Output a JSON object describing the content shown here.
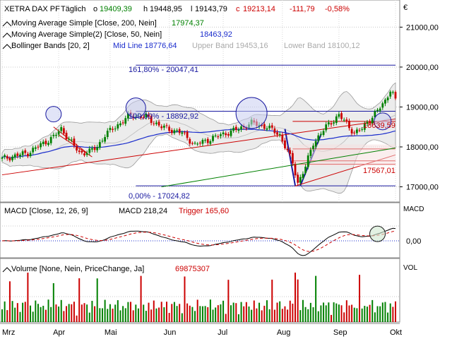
{
  "header": {
    "symbol": "XETRA DAX PF",
    "interval": "Täglich",
    "open_prefix": "o",
    "open": "19409,39",
    "high_prefix": "h",
    "high": "19448,95",
    "low_prefix": "l",
    "low": "19143,79",
    "close_prefix": "c",
    "close": "19213,14",
    "change": "-111,79",
    "change_pct": "-0,58%",
    "currency": "€"
  },
  "legend": {
    "ma200_label": "Moving Average Simple [Close, 200, Nein]",
    "ma200_value": "17974,37",
    "ma50_label": "Moving Average Simple(2) [Close, 50, Nein]",
    "ma50_value": "18463,92",
    "bb_label": "Bollinger Bands [20, 2]",
    "bb_mid": "Mid Line 18776,64",
    "bb_upper": "Upper Band 19453,16",
    "bb_lower": "Lower Band 18100,12"
  },
  "annotations": {
    "fib_1618": "161,80% - 20047,41",
    "fib_100": "100,00% - 18892,92",
    "fib_0": "0,00% - 17024,82",
    "level_high": "18639,59",
    "level_low": "17567,01"
  },
  "macd": {
    "label": "MACD [Close, 12, 26, 9]",
    "value_label": "MACD 218,24",
    "trigger_label": "Trigger 165,60",
    "axis_title": "MACD",
    "axis_tick": "0,00"
  },
  "volume": {
    "label": "Volume [None, Nein, PriceChange, Ja]",
    "value": "69875307",
    "axis_title": "VOL"
  },
  "colors": {
    "up": "#008000",
    "down": "#cc0000",
    "ma200": "#008000",
    "ma50": "#1a2ccc",
    "bollinger": "#9a9a9a",
    "fib": "#1a1aa0",
    "trend": "#cc0000",
    "macd": "#000000",
    "trigger": "#cc0000"
  },
  "chart_data": [
    {
      "type": "candlestick",
      "title": "XETRA DAX PF",
      "y_axis_ticks": [
        21000,
        20000,
        19000,
        18000,
        17000
      ],
      "y_tick_labels": [
        "21000,00",
        "20000,00",
        "19000,00",
        "18000,00",
        "17000,00"
      ],
      "ylim": [
        16620,
        21680
      ],
      "x_tick_labels": [
        "Mrz",
        "Apr",
        "Mai",
        "Jun",
        "Jul",
        "Aug",
        "Sep",
        "Okt"
      ],
      "keypoints": [
        {
          "day": 0,
          "close": 17700
        },
        {
          "day": 10,
          "close": 17850
        },
        {
          "day": 20,
          "close": 18250
        },
        {
          "day": 23,
          "close": 18450
        },
        {
          "day": 30,
          "close": 17850
        },
        {
          "day": 34,
          "close": 17880
        },
        {
          "day": 37,
          "close": 18000
        },
        {
          "day": 40,
          "close": 18300
        },
        {
          "day": 50,
          "close": 18800
        },
        {
          "day": 56,
          "close": 18750
        },
        {
          "day": 62,
          "close": 18500
        },
        {
          "day": 70,
          "close": 18350
        },
        {
          "day": 75,
          "close": 18050
        },
        {
          "day": 85,
          "close": 18300
        },
        {
          "day": 92,
          "close": 18450
        },
        {
          "day": 97,
          "close": 18600
        },
        {
          "day": 103,
          "close": 18500
        },
        {
          "day": 108,
          "close": 18300
        },
        {
          "day": 113,
          "close": 17600
        },
        {
          "day": 115,
          "close": 17100
        },
        {
          "day": 118,
          "close": 17500
        },
        {
          "day": 121,
          "close": 18100
        },
        {
          "day": 126,
          "close": 18500
        },
        {
          "day": 131,
          "close": 18800
        },
        {
          "day": 133,
          "close": 18650
        },
        {
          "day": 137,
          "close": 18350
        },
        {
          "day": 140,
          "close": 18450
        },
        {
          "day": 143,
          "close": 18700
        },
        {
          "day": 146,
          "close": 18900
        },
        {
          "day": 149,
          "close": 19150
        },
        {
          "day": 151,
          "close": 19450
        },
        {
          "day": 153,
          "close": 19213
        }
      ],
      "fibonacci": [
        {
          "label": "161,80%",
          "value": 20047.41
        },
        {
          "label": "100,00%",
          "value": 18892.92
        },
        {
          "label": "0,00%",
          "value": 17024.82
        }
      ],
      "horizontal_levels": [
        18639.59,
        17567.01
      ]
    },
    {
      "type": "line",
      "title": "MACD [Close, 12, 26, 9]",
      "series": [
        {
          "name": "MACD",
          "last": 218.24
        },
        {
          "name": "Trigger",
          "last": 165.6
        }
      ],
      "y_tick_labels": [
        "0,00"
      ]
    },
    {
      "type": "bar",
      "title": "Volume [None, Nein, PriceChange, Ja]",
      "last_value": 69875307
    }
  ]
}
